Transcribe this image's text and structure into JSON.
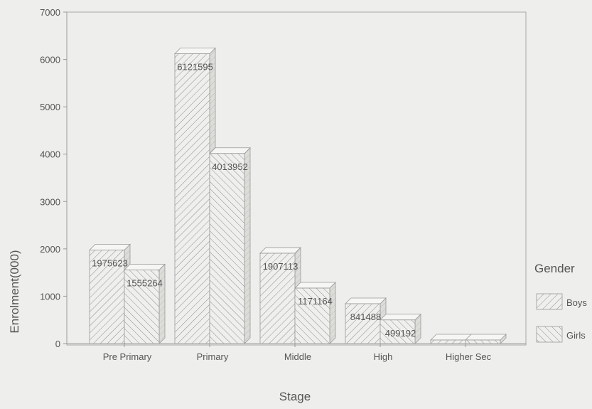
{
  "chart_data": {
    "type": "bar",
    "title": "",
    "xlabel": "Stage",
    "ylabel": "Enrolment(000)",
    "ylim": [
      0,
      7000
    ],
    "yticks": [
      0,
      1000,
      2000,
      3000,
      4000,
      5000,
      6000,
      7000
    ],
    "grid": false,
    "categories": [
      "Pre Primary",
      "Primary",
      "Middle",
      "High",
      "Higher Sec"
    ],
    "series": [
      {
        "name": "Boys",
        "values": [
          1975623,
          6121595,
          1907113,
          841488,
          0
        ],
        "data_labels": [
          "1975623",
          "6121595",
          "1907113",
          "841488",
          ""
        ]
      },
      {
        "name": "Girls",
        "values": [
          1555264,
          4013952,
          1171164,
          499192,
          0
        ],
        "data_labels": [
          "1555264",
          "4013952",
          "1171164",
          "499192",
          ""
        ]
      }
    ],
    "legend": {
      "title": "Gender",
      "position": "right",
      "entries": [
        "Boys",
        "Girls"
      ]
    },
    "colors": {
      "background": "#eeeeec",
      "bar_fill": "#efefed",
      "bar_side": "#d9d9d6",
      "bar_top": "#f6f6f4",
      "hatch": "#8c8c8c",
      "outline": "#9a9a9a",
      "axis": "#9a9a9a",
      "text": "#555555"
    },
    "style": "3d-hatched"
  }
}
